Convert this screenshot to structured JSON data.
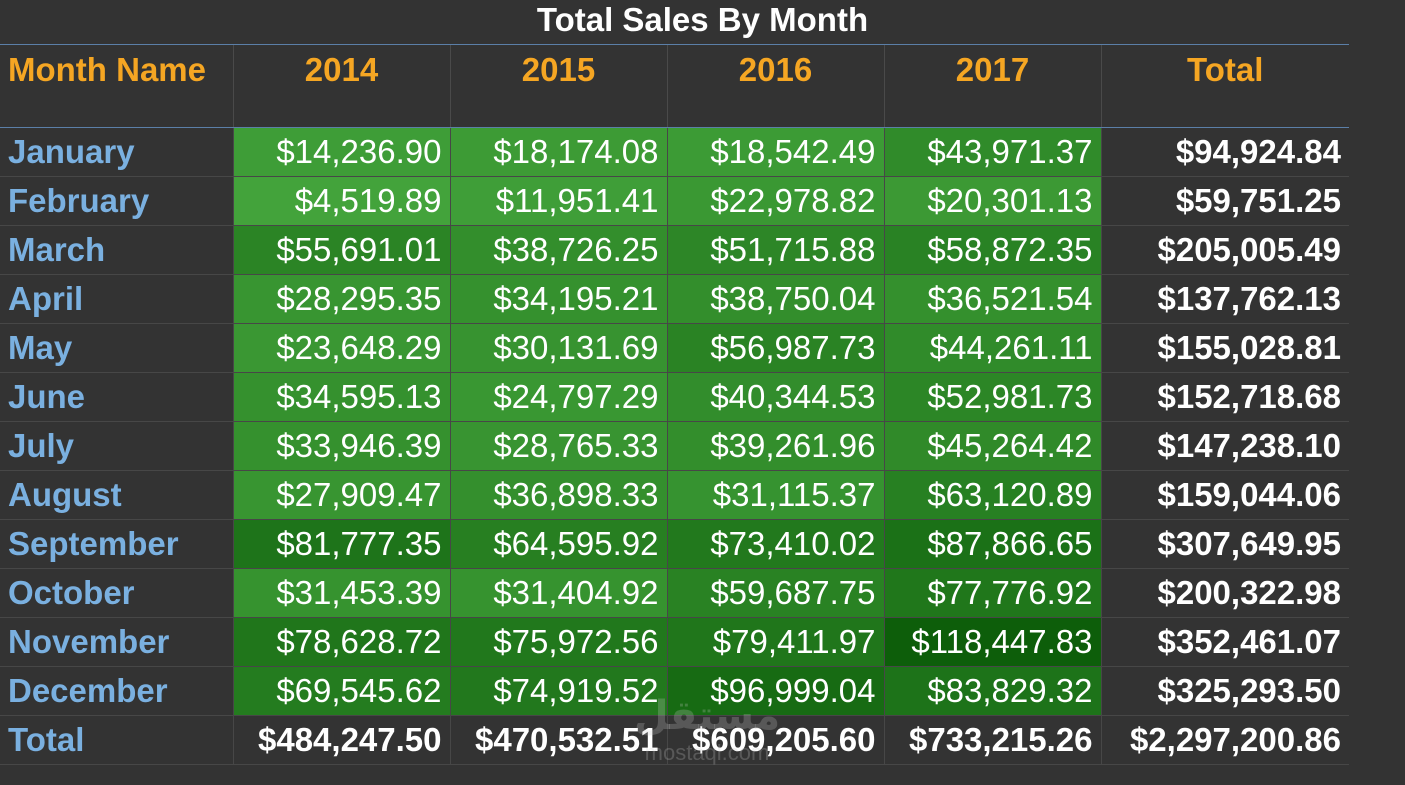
{
  "title": "Total Sales By Month",
  "chart_data": {
    "type": "table",
    "title": "Total Sales By Month",
    "columns": [
      "Month Name",
      "2014",
      "2015",
      "2016",
      "2017",
      "Total"
    ],
    "rows": [
      {
        "month": "January",
        "values": [
          "$14,236.90",
          "$18,174.08",
          "$18,542.49",
          "$43,971.37"
        ],
        "total": "$94,924.84"
      },
      {
        "month": "February",
        "values": [
          "$4,519.89",
          "$11,951.41",
          "$22,978.82",
          "$20,301.13"
        ],
        "total": "$59,751.25"
      },
      {
        "month": "March",
        "values": [
          "$55,691.01",
          "$38,726.25",
          "$51,715.88",
          "$58,872.35"
        ],
        "total": "$205,005.49"
      },
      {
        "month": "April",
        "values": [
          "$28,295.35",
          "$34,195.21",
          "$38,750.04",
          "$36,521.54"
        ],
        "total": "$137,762.13"
      },
      {
        "month": "May",
        "values": [
          "$23,648.29",
          "$30,131.69",
          "$56,987.73",
          "$44,261.11"
        ],
        "total": "$155,028.81"
      },
      {
        "month": "June",
        "values": [
          "$34,595.13",
          "$24,797.29",
          "$40,344.53",
          "$52,981.73"
        ],
        "total": "$152,718.68"
      },
      {
        "month": "July",
        "values": [
          "$33,946.39",
          "$28,765.33",
          "$39,261.96",
          "$45,264.42"
        ],
        "total": "$147,238.10"
      },
      {
        "month": "August",
        "values": [
          "$27,909.47",
          "$36,898.33",
          "$31,115.37",
          "$63,120.89"
        ],
        "total": "$159,044.06"
      },
      {
        "month": "September",
        "values": [
          "$81,777.35",
          "$64,595.92",
          "$73,410.02",
          "$87,866.65"
        ],
        "total": "$307,649.95"
      },
      {
        "month": "October",
        "values": [
          "$31,453.39",
          "$31,404.92",
          "$59,687.75",
          "$77,776.92"
        ],
        "total": "$200,322.98"
      },
      {
        "month": "November",
        "values": [
          "$78,628.72",
          "$75,972.56",
          "$79,411.97",
          "$118,447.83"
        ],
        "total": "$352,461.07"
      },
      {
        "month": "December",
        "values": [
          "$69,545.62",
          "$74,919.52",
          "$96,999.04",
          "$83,829.32"
        ],
        "total": "$325,293.50"
      }
    ],
    "total_row": {
      "month": "Total",
      "values": [
        "$484,247.50",
        "$470,532.51",
        "$609,205.60",
        "$733,215.26"
      ],
      "total": "$2,297,200.86"
    },
    "color_scale": {
      "low": "#43a33b",
      "high": "#0d5e0a"
    }
  },
  "colors": {
    "background": "#333333",
    "header_text": "#f5a623",
    "month_text": "#7ab0e0",
    "value_text": "#ffffff"
  },
  "watermark": {
    "logo": "مستقل",
    "url": "mostaql.com"
  }
}
